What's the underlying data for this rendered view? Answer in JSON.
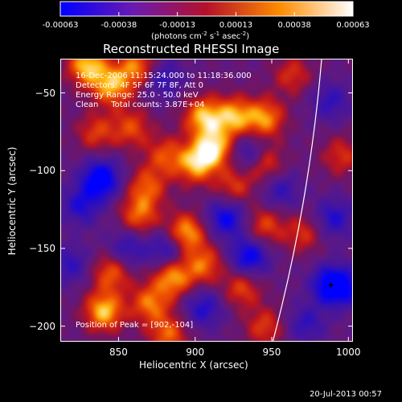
{
  "colorbar": {
    "ticks": [
      "-0.00063",
      "-0.00038",
      "-0.00013",
      "0.00013",
      "0.00038",
      "0.00063"
    ],
    "units_main": "(photons cm",
    "units_exp1": "-2",
    "units_mid1": " s",
    "units_exp2": "-1",
    "units_mid2": " asec",
    "units_exp3": "-2",
    "units_close": ")"
  },
  "chart_data": {
    "type": "heatmap",
    "title": "Reconstructed RHESSI Image",
    "xlabel": "Heliocentric X (arcsec)",
    "ylabel": "Heliocentric Y (arcsec)",
    "xlim": [
      812,
      1003
    ],
    "ylim": [
      -210,
      -28
    ],
    "x_ticks": [
      850,
      900,
      950,
      1000
    ],
    "y_ticks": [
      -50,
      -100,
      -150,
      -200
    ],
    "color_range": [
      -0.00063,
      0.00063
    ],
    "colormap": [
      "#0000ff",
      "#7a1aa0",
      "#d8181f",
      "#ffa000",
      "#ffffff"
    ],
    "peak": [
      902,
      -104
    ],
    "limb": [
      [
        950,
        -210
      ],
      [
        970,
        -120
      ],
      [
        982,
        -28
      ]
    ],
    "blobs": [
      {
        "x": 829,
        "y": -32,
        "v": 1.0
      },
      {
        "x": 845,
        "y": -45,
        "v": 0.9
      },
      {
        "x": 862,
        "y": -33,
        "v": 0.8
      },
      {
        "x": 905,
        "y": -65,
        "v": 0.95
      },
      {
        "x": 925,
        "y": -65,
        "v": 0.9
      },
      {
        "x": 945,
        "y": -66,
        "v": 0.85
      },
      {
        "x": 900,
        "y": -95,
        "v": 0.9
      },
      {
        "x": 912,
        "y": -85,
        "v": 1.0
      },
      {
        "x": 880,
        "y": -90,
        "v": 0.6
      },
      {
        "x": 858,
        "y": -72,
        "v": 0.6
      },
      {
        "x": 835,
        "y": -75,
        "v": 0.55
      },
      {
        "x": 868,
        "y": -110,
        "v": 0.65
      },
      {
        "x": 925,
        "y": -110,
        "v": 0.55
      },
      {
        "x": 945,
        "y": -95,
        "v": 0.65
      },
      {
        "x": 863,
        "y": -128,
        "v": 0.7
      },
      {
        "x": 893,
        "y": -140,
        "v": 1.0
      },
      {
        "x": 945,
        "y": -135,
        "v": 0.6
      },
      {
        "x": 970,
        "y": -140,
        "v": 0.5
      },
      {
        "x": 885,
        "y": -168,
        "v": 0.9
      },
      {
        "x": 905,
        "y": -160,
        "v": 0.7
      },
      {
        "x": 845,
        "y": -165,
        "v": 0.7
      },
      {
        "x": 840,
        "y": -190,
        "v": 1.0
      },
      {
        "x": 870,
        "y": -185,
        "v": 0.75
      },
      {
        "x": 930,
        "y": -175,
        "v": 0.6
      },
      {
        "x": 945,
        "y": -200,
        "v": 0.55
      },
      {
        "x": 882,
        "y": -205,
        "v": 0.7
      },
      {
        "x": 963,
        "y": -38,
        "v": 0.5
      },
      {
        "x": 995,
        "y": -90,
        "v": 0.5
      },
      {
        "x": 998,
        "y": -175,
        "v": -0.5
      },
      {
        "x": 988,
        "y": -173,
        "v": -0.9
      },
      {
        "x": 838,
        "y": -105,
        "v": -1.0
      },
      {
        "x": 920,
        "y": -130,
        "v": -0.8
      },
      {
        "x": 935,
        "y": -155,
        "v": -0.85
      },
      {
        "x": 882,
        "y": -150,
        "v": -0.7
      },
      {
        "x": 935,
        "y": -88,
        "v": -0.6
      },
      {
        "x": 825,
        "y": -122,
        "v": -0.6
      },
      {
        "x": 855,
        "y": -150,
        "v": -0.55
      },
      {
        "x": 990,
        "y": -130,
        "v": -0.6
      },
      {
        "x": 878,
        "y": -40,
        "v": -0.55
      },
      {
        "x": 988,
        "y": -55,
        "v": -0.5
      },
      {
        "x": 972,
        "y": -198,
        "v": -0.5
      },
      {
        "x": 905,
        "y": -188,
        "v": -0.6
      },
      {
        "x": 818,
        "y": -160,
        "v": -0.5
      },
      {
        "x": 955,
        "y": -112,
        "v": -0.5
      }
    ]
  },
  "info": {
    "line1": "16-Dec-2006 11:15:24.000 to 11:18:36.000",
    "line2": "Detectors: 4F 5F 6F 7F 8F, Att 0",
    "line3": "Energy Range: 25.0 - 50.0 keV",
    "line4": "Clean     Total counts: 3.87E+04",
    "peak_label": "Position of Peak = [902,-104]"
  },
  "footer": {
    "timestamp": "20-Jul-2013 00:57"
  }
}
